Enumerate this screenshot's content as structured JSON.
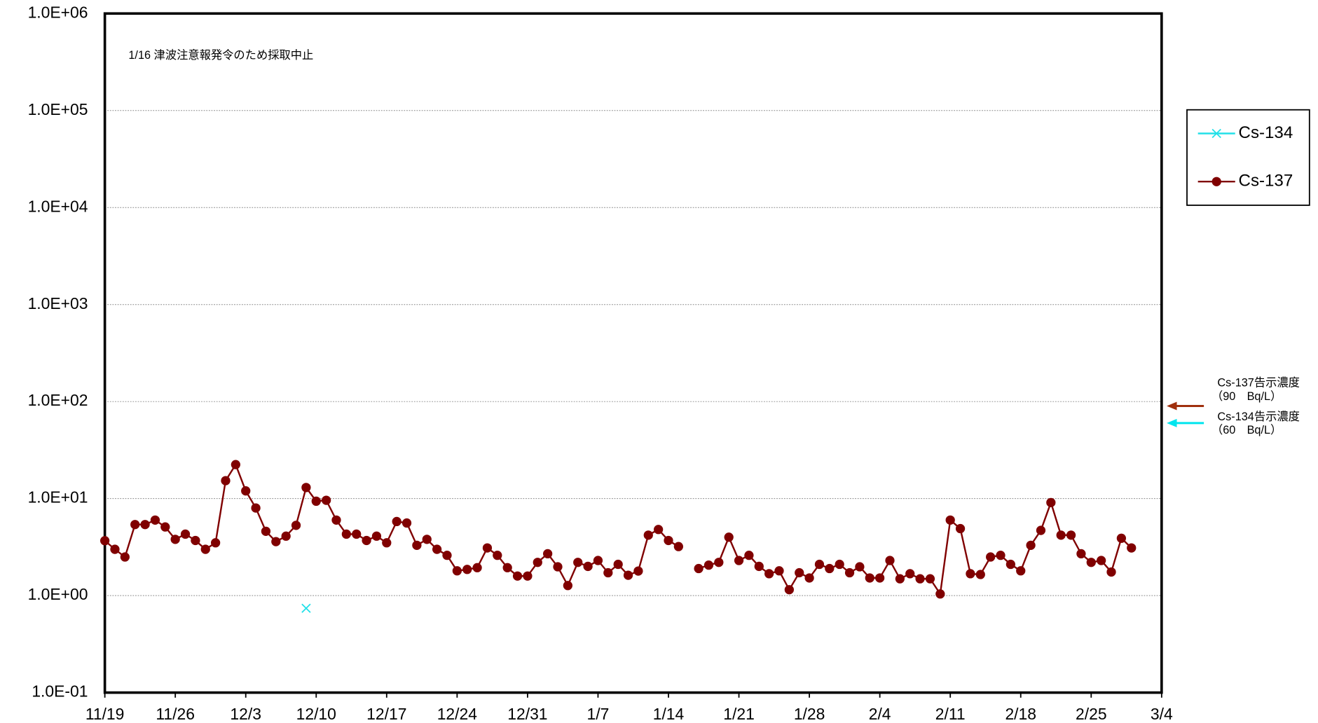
{
  "chart_data": {
    "type": "line",
    "log_y": true,
    "grid": true,
    "annotation": "1/16 津波注意報発令のため採取中止",
    "categories": [
      "11/19",
      null,
      null,
      null,
      null,
      null,
      null,
      "11/26",
      null,
      null,
      null,
      null,
      null,
      null,
      "12/3",
      null,
      null,
      null,
      null,
      null,
      null,
      "12/10",
      null,
      null,
      null,
      null,
      null,
      null,
      "12/17",
      null,
      null,
      null,
      null,
      null,
      null,
      "12/24",
      null,
      null,
      null,
      null,
      null,
      null,
      "12/31",
      null,
      null,
      null,
      null,
      null,
      null,
      "1/7",
      null,
      null,
      null,
      null,
      null,
      null,
      "1/14",
      null,
      null,
      null,
      null,
      null,
      null,
      "1/21",
      null,
      null,
      null,
      null,
      null,
      null,
      "1/28",
      null,
      null,
      null,
      null,
      null,
      null,
      "2/4",
      null,
      null,
      null,
      null,
      null,
      null,
      "2/11",
      null,
      null,
      null,
      null,
      null,
      null,
      "2/18",
      null,
      null,
      null,
      null,
      null,
      null,
      "2/25",
      null,
      null,
      null,
      null,
      null,
      null,
      "3/4"
    ],
    "ylim": [
      0.1,
      1000000
    ],
    "yticks": [
      {
        "value": 0.1,
        "label": "1.0E-01"
      },
      {
        "value": 1,
        "label": "1.0E+00"
      },
      {
        "value": 10,
        "label": "1.0E+01"
      },
      {
        "value": 100,
        "label": "1.0E+02"
      },
      {
        "value": 1000,
        "label": "1.0E+03"
      },
      {
        "value": 10000,
        "label": "1.0E+04"
      },
      {
        "value": 100000,
        "label": "1.0E+05"
      },
      {
        "value": 1000000,
        "label": "1.0E+06"
      }
    ],
    "series": [
      {
        "name": "Cs-134",
        "color": "#22e0e8",
        "marker": "x",
        "values": [
          null,
          null,
          null,
          null,
          null,
          null,
          null,
          null,
          null,
          null,
          null,
          null,
          null,
          null,
          null,
          null,
          null,
          null,
          null,
          null,
          0.74,
          null,
          null,
          null,
          null,
          null,
          null,
          null,
          null,
          null,
          null,
          null,
          null,
          null,
          null,
          null,
          null,
          null,
          null,
          null,
          null,
          null,
          null,
          null,
          null,
          null,
          null,
          null,
          null,
          null,
          null,
          null,
          null,
          null,
          null,
          null,
          null,
          null,
          null,
          null,
          null,
          null,
          null,
          null,
          null,
          null,
          null,
          null,
          null,
          null,
          null,
          null,
          null,
          null,
          null,
          null,
          null,
          null,
          null,
          null,
          null,
          null,
          null,
          null,
          null,
          null,
          null,
          null,
          null,
          null,
          null,
          null,
          null,
          null,
          null,
          null,
          null,
          null,
          null,
          null,
          null,
          null,
          null,
          null,
          null,
          null
        ]
      },
      {
        "name": "Cs-137",
        "color": "#800000",
        "marker": "circle",
        "values": [
          3.68,
          3.0,
          2.5,
          5.4,
          5.4,
          6.0,
          5.1,
          3.8,
          4.3,
          3.7,
          3.0,
          3.5,
          15.3,
          22.4,
          12,
          8.0,
          4.6,
          3.6,
          4.1,
          5.3,
          13,
          9.4,
          9.6,
          6.0,
          4.3,
          4.3,
          3.7,
          4.1,
          3.5,
          5.8,
          5.6,
          3.3,
          3.8,
          3.0,
          2.6,
          1.8,
          1.86,
          1.94,
          3.1,
          2.6,
          1.94,
          1.59,
          1.59,
          2.2,
          2.7,
          1.98,
          1.27,
          2.2,
          2.0,
          2.3,
          1.72,
          2.1,
          1.62,
          1.79,
          4.2,
          4.8,
          3.7,
          3.2,
          null,
          1.9,
          2.06,
          2.2,
          4.0,
          2.3,
          2.6,
          2.0,
          1.68,
          1.8,
          1.15,
          1.72,
          1.52,
          2.1,
          1.9,
          2.1,
          1.72,
          1.98,
          1.52,
          1.52,
          2.3,
          1.49,
          1.68,
          1.49,
          1.49,
          1.04,
          6.0,
          4.9,
          1.68,
          1.65,
          2.5,
          2.6,
          2.1,
          1.8,
          3.3,
          4.7,
          9.1,
          4.2,
          4.2,
          2.7,
          2.2,
          2.3,
          1.75,
          3.9,
          3.1,
          null,
          null,
          null
        ]
      }
    ],
    "reference_lines": [
      {
        "label": "Cs-137告示濃度",
        "sublabel": "（90　Bq/L）",
        "value": 90,
        "color": "#a0300e"
      },
      {
        "label": "Cs-134告示濃度",
        "sublabel": "（60　Bq/L）",
        "value": 60,
        "color": "#00e5ee"
      }
    ]
  }
}
